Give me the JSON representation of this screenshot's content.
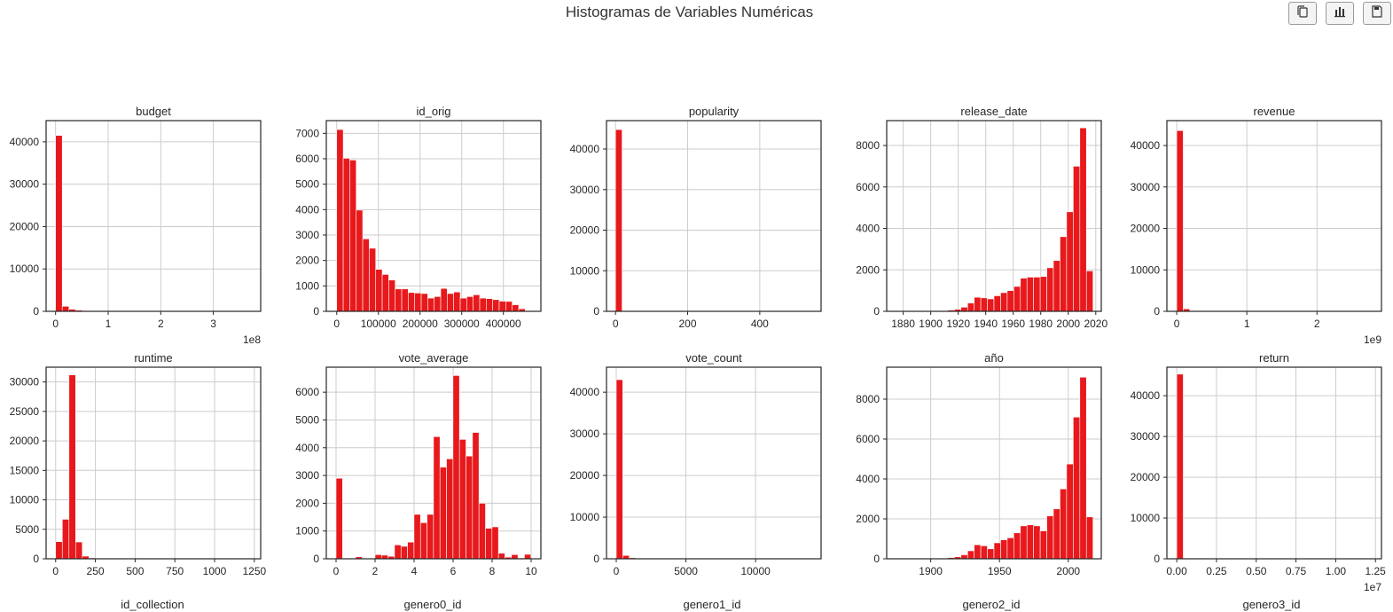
{
  "page_title": "Histogramas de Variables Numéricas",
  "toolbar": [
    {
      "name": "copy-button",
      "icon": "copy-icon"
    },
    {
      "name": "chart-button",
      "icon": "bar-chart-icon"
    },
    {
      "name": "save-button",
      "icon": "save-icon"
    }
  ],
  "colors": {
    "bar": "#e8191c",
    "bar_edge": "#ffffff",
    "grid": "#cccccc",
    "axes": "#262626"
  },
  "next_row_titles": [
    "id_collection",
    "genero0_id",
    "genero1_id",
    "genero2_id",
    "genero3_id"
  ],
  "chart_data": [
    {
      "type": "bar",
      "title": "budget",
      "grid": true,
      "x_range": [
        -18000000,
        390000000
      ],
      "ylim": [
        0,
        45000
      ],
      "xticks": [
        0,
        100000000,
        200000000,
        300000000
      ],
      "xtick_labels": [
        "0",
        "1",
        "2",
        "3"
      ],
      "x_offset_label": "1e8",
      "yticks": [
        0,
        10000,
        20000,
        30000,
        40000
      ],
      "ytick_labels": [
        "0",
        "10000",
        "20000",
        "30000",
        "40000"
      ],
      "bin_start": 0,
      "bin_width": 12700000,
      "counts": [
        41500,
        1200,
        500,
        280,
        120,
        60,
        40,
        25,
        15,
        10,
        8,
        6,
        5,
        4,
        3,
        3,
        2,
        2,
        1,
        1,
        1,
        1,
        1,
        1,
        1,
        1,
        1,
        1,
        1,
        1
      ]
    },
    {
      "type": "bar",
      "title": "id_orig",
      "grid": true,
      "x_range": [
        -25000,
        490000
      ],
      "ylim": [
        0,
        7500
      ],
      "xticks": [
        0,
        100000,
        200000,
        300000,
        400000
      ],
      "xtick_labels": [
        "0",
        "100000",
        "200000",
        "300000",
        "400000"
      ],
      "x_offset_label": "",
      "yticks": [
        0,
        1000,
        2000,
        3000,
        4000,
        5000,
        6000,
        7000
      ],
      "ytick_labels": [
        "0",
        "1000",
        "2000",
        "3000",
        "4000",
        "5000",
        "6000",
        "7000"
      ],
      "bin_start": 0,
      "bin_width": 15600,
      "counts": [
        7150,
        6020,
        5950,
        3980,
        2850,
        2480,
        1650,
        1450,
        1230,
        880,
        880,
        740,
        720,
        700,
        520,
        580,
        900,
        700,
        760,
        520,
        580,
        650,
        520,
        500,
        460,
        400,
        390,
        260,
        100,
        0
      ]
    },
    {
      "type": "bar",
      "title": "popularity",
      "grid": true,
      "x_range": [
        -25,
        570
      ],
      "ylim": [
        0,
        47000
      ],
      "xticks": [
        0,
        200,
        400
      ],
      "xtick_labels": [
        "0",
        "200",
        "400"
      ],
      "x_offset_label": "",
      "yticks": [
        0,
        10000,
        20000,
        30000,
        40000
      ],
      "ytick_labels": [
        "0",
        "10000",
        "20000",
        "30000",
        "40000"
      ],
      "bin_start": 0,
      "bin_width": 18.2,
      "counts": [
        44800,
        50,
        10,
        3,
        2,
        1,
        1,
        1,
        1,
        1,
        0,
        0,
        0,
        0,
        0,
        0,
        0,
        0,
        0,
        0,
        0,
        0,
        0,
        0,
        0,
        0,
        0,
        0,
        0,
        1
      ]
    },
    {
      "type": "bar",
      "title": "release_date",
      "grid": true,
      "x_range": [
        1868,
        2024
      ],
      "ylim": [
        0,
        9200
      ],
      "xticks": [
        1880,
        1900,
        1920,
        1940,
        1960,
        1980,
        2000,
        2020
      ],
      "xtick_labels": [
        "1880",
        "1900",
        "1920",
        "1940",
        "1960",
        "1980",
        "2000",
        "2020"
      ],
      "x_offset_label": "",
      "yticks": [
        0,
        2000,
        4000,
        6000,
        8000
      ],
      "ytick_labels": [
        "0",
        "2000",
        "4000",
        "6000",
        "8000"
      ],
      "bin_start": 1874,
      "bin_width": 4.8,
      "counts": [
        5,
        5,
        5,
        5,
        10,
        15,
        20,
        30,
        60,
        100,
        200,
        400,
        680,
        650,
        600,
        750,
        900,
        1000,
        1200,
        1600,
        1650,
        1650,
        1680,
        2100,
        2450,
        3600,
        4800,
        7000,
        8850,
        1950
      ]
    },
    {
      "type": "bar",
      "title": "revenue",
      "grid": true,
      "x_range": [
        -140000000,
        2920000000
      ],
      "ylim": [
        0,
        46000
      ],
      "xticks": [
        0,
        1000000000,
        2000000000
      ],
      "xtick_labels": [
        "0",
        "1",
        "2"
      ],
      "x_offset_label": "1e9",
      "yticks": [
        0,
        10000,
        20000,
        30000,
        40000
      ],
      "ytick_labels": [
        "0",
        "10000",
        "20000",
        "30000",
        "40000"
      ],
      "bin_start": 0,
      "bin_width": 93000000,
      "counts": [
        43600,
        600,
        150,
        60,
        30,
        15,
        10,
        5,
        3,
        2,
        1,
        1,
        1,
        1,
        1,
        1,
        1,
        1,
        1,
        1,
        0,
        0,
        0,
        0,
        0,
        0,
        0,
        0,
        0,
        1
      ]
    },
    {
      "type": "bar",
      "title": "runtime",
      "grid": true,
      "x_range": [
        -60,
        1290
      ],
      "ylim": [
        0,
        32500
      ],
      "xticks": [
        0,
        250,
        500,
        750,
        1000,
        1250
      ],
      "xtick_labels": [
        "0",
        "250",
        "500",
        "750",
        "1000",
        "1250"
      ],
      "x_offset_label": "",
      "yticks": [
        0,
        5000,
        10000,
        15000,
        20000,
        25000,
        30000
      ],
      "ytick_labels": [
        "0",
        "5000",
        "10000",
        "15000",
        "20000",
        "25000",
        "30000"
      ],
      "bin_start": 0,
      "bin_width": 41.9,
      "counts": [
        2900,
        6700,
        31200,
        2850,
        450,
        150,
        60,
        30,
        15,
        10,
        8,
        5,
        4,
        3,
        2,
        2,
        1,
        1,
        1,
        1,
        1,
        1,
        1,
        1,
        1,
        1,
        1,
        1,
        1,
        1
      ]
    },
    {
      "type": "bar",
      "title": "vote_average",
      "grid": true,
      "x_range": [
        -0.5,
        10.5
      ],
      "ylim": [
        0,
        6900
      ],
      "xticks": [
        0,
        2,
        4,
        6,
        8,
        10
      ],
      "xtick_labels": [
        "0",
        "2",
        "4",
        "6",
        "8",
        "10"
      ],
      "x_offset_label": "",
      "yticks": [
        0,
        1000,
        2000,
        3000,
        4000,
        5000,
        6000
      ],
      "ytick_labels": [
        "0",
        "1000",
        "2000",
        "3000",
        "4000",
        "5000",
        "6000"
      ],
      "bin_start": 0,
      "bin_width": 0.333,
      "counts": [
        2900,
        0,
        0,
        70,
        0,
        20,
        150,
        130,
        90,
        500,
        450,
        600,
        1600,
        1300,
        1600,
        4400,
        3300,
        3600,
        6600,
        4300,
        3700,
        4550,
        2000,
        1100,
        1150,
        200,
        60,
        150,
        30,
        160
      ]
    },
    {
      "type": "bar",
      "title": "vote_count",
      "grid": true,
      "x_range": [
        -700,
        14700
      ],
      "ylim": [
        0,
        46000
      ],
      "xticks": [
        0,
        5000,
        10000
      ],
      "xtick_labels": [
        "0",
        "5000",
        "10000"
      ],
      "x_offset_label": "",
      "yticks": [
        0,
        10000,
        20000,
        30000,
        40000
      ],
      "ytick_labels": [
        "0",
        "10000",
        "20000",
        "30000",
        "40000"
      ],
      "bin_start": 0,
      "bin_width": 467,
      "counts": [
        43000,
        800,
        250,
        120,
        70,
        40,
        25,
        15,
        10,
        8,
        6,
        5,
        4,
        3,
        3,
        2,
        2,
        1,
        1,
        1,
        1,
        1,
        1,
        1,
        1,
        1,
        1,
        1,
        1,
        1
      ]
    },
    {
      "type": "bar",
      "title": "año",
      "grid": true,
      "x_range": [
        1868,
        2024
      ],
      "ylim": [
        0,
        9600
      ],
      "xticks": [
        1900,
        1950,
        2000
      ],
      "xtick_labels": [
        "1900",
        "1950",
        "2000"
      ],
      "x_offset_label": "",
      "yticks": [
        0,
        2000,
        4000,
        6000,
        8000
      ],
      "ytick_labels": [
        "0",
        "2000",
        "4000",
        "6000",
        "8000"
      ],
      "bin_start": 1874,
      "bin_width": 4.8,
      "counts": [
        5,
        5,
        5,
        5,
        10,
        15,
        20,
        30,
        60,
        100,
        200,
        400,
        700,
        650,
        500,
        800,
        950,
        1050,
        1300,
        1650,
        1700,
        1650,
        1400,
        2150,
        2500,
        3500,
        4750,
        7100,
        9100,
        2100
      ]
    },
    {
      "type": "bar",
      "title": "return",
      "grid": true,
      "x_range": [
        -620000,
        12880000
      ],
      "ylim": [
        0,
        47000
      ],
      "xticks": [
        0,
        2500000,
        5000000,
        7500000,
        10000000,
        12500000
      ],
      "xtick_labels": [
        "0.00",
        "0.25",
        "0.50",
        "0.75",
        "1.00",
        "1.25"
      ],
      "x_offset_label": "1e7",
      "yticks": [
        0,
        10000,
        20000,
        30000,
        40000
      ],
      "ytick_labels": [
        "0",
        "10000",
        "20000",
        "30000",
        "40000"
      ],
      "bin_start": 0,
      "bin_width": 410000,
      "counts": [
        45300,
        2,
        1,
        1,
        0,
        0,
        0,
        0,
        0,
        0,
        0,
        0,
        0,
        0,
        0,
        0,
        0,
        0,
        0,
        0,
        0,
        0,
        0,
        0,
        0,
        0,
        0,
        0,
        0,
        1
      ]
    }
  ]
}
